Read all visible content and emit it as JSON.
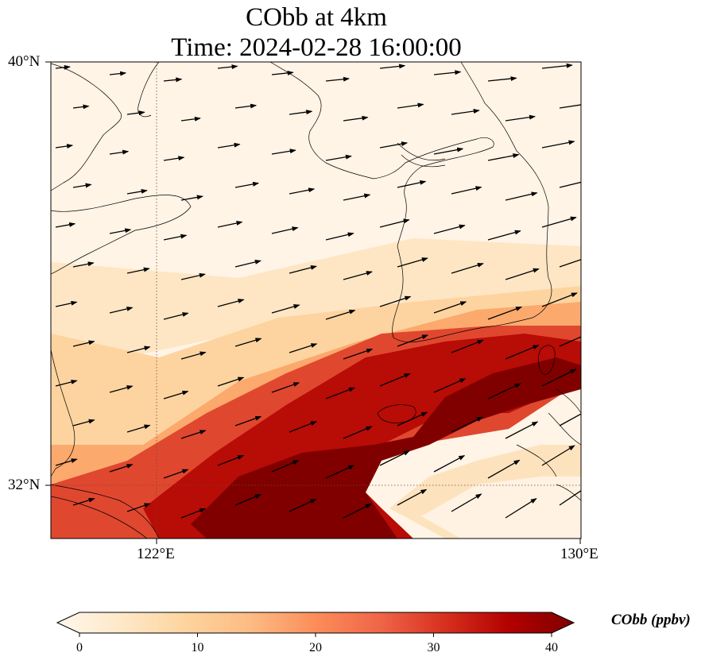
{
  "title": {
    "line1": "CObb at 4km",
    "line2": "Time: 2024-02-28 16:00:00"
  },
  "map": {
    "lon_range": [
      120,
      130
    ],
    "lat_range": [
      31,
      40
    ],
    "field": "CObb",
    "level": "4km"
  },
  "axes": {
    "lat_ticks": [
      "40°N",
      "32°N"
    ],
    "lon_ticks": [
      "122°E",
      "130°E"
    ],
    "gridlines": {
      "lat": [
        32
      ],
      "lon": [
        122
      ],
      "style": "dotted"
    }
  },
  "colorbar": {
    "label": "CObb (ppbv)",
    "ticks": [
      "0",
      "10",
      "20",
      "30",
      "40"
    ],
    "min": 0,
    "max": 40,
    "extend": "both",
    "colormap": [
      "#fff7ec",
      "#fee8c8",
      "#fdd49e",
      "#fdbb84",
      "#fc8d59",
      "#ef6548",
      "#d7301f",
      "#b30000",
      "#7f0000"
    ]
  },
  "wind": {
    "direction": "west-southwest to east-northeast",
    "arrow_color": "#000000"
  }
}
